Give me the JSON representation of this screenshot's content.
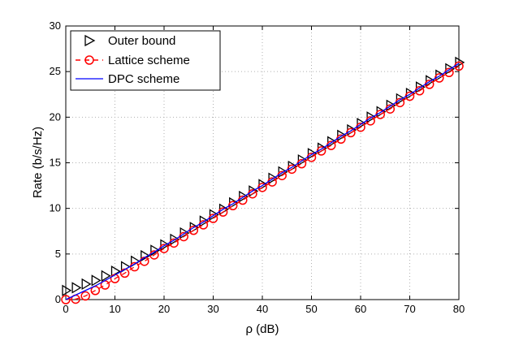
{
  "chart_data": {
    "type": "line",
    "title": "",
    "xlabel": "ρ (dB)",
    "ylabel": "Rate (b/s/Hz)",
    "xlim": [
      0,
      80
    ],
    "ylim": [
      0,
      30
    ],
    "xticks": [
      0,
      10,
      20,
      30,
      40,
      50,
      60,
      70,
      80
    ],
    "yticks": [
      0,
      5,
      10,
      15,
      20,
      25,
      30
    ],
    "grid": true,
    "legend_position": "top-left",
    "colors": {
      "outer_bound": "#000000",
      "lattice": "#ff0000",
      "dpc": "#0000ff",
      "grid": "#b0b0b0",
      "axes": "#000000"
    },
    "series": [
      {
        "name": "Outer bound",
        "style": "markers",
        "marker": "triangle-right",
        "x": [
          0,
          2,
          4,
          6,
          8,
          10,
          12,
          14,
          16,
          18,
          20,
          22,
          24,
          26,
          28,
          30,
          32,
          34,
          36,
          38,
          40,
          42,
          44,
          46,
          48,
          50,
          52,
          54,
          56,
          58,
          60,
          62,
          64,
          66,
          68,
          70,
          72,
          74,
          76,
          78,
          80
        ],
        "y": [
          1.0,
          1.3,
          1.7,
          2.1,
          2.6,
          3.1,
          3.6,
          4.2,
          4.8,
          5.4,
          6.0,
          6.6,
          7.3,
          7.9,
          8.6,
          9.3,
          9.9,
          10.6,
          11.3,
          11.9,
          12.6,
          13.3,
          14.0,
          14.6,
          15.3,
          16.0,
          16.6,
          17.3,
          18.0,
          18.6,
          19.3,
          20.0,
          20.6,
          21.3,
          22.0,
          22.6,
          23.3,
          24.0,
          24.6,
          25.3,
          26.0
        ]
      },
      {
        "name": "Lattice scheme",
        "style": "dashed-markers",
        "marker": "circle",
        "x": [
          0,
          2,
          4,
          6,
          8,
          10,
          12,
          14,
          16,
          18,
          20,
          22,
          24,
          26,
          28,
          30,
          32,
          34,
          36,
          38,
          40,
          42,
          44,
          46,
          48,
          50,
          52,
          54,
          56,
          58,
          60,
          62,
          64,
          66,
          68,
          70,
          72,
          74,
          76,
          78,
          80
        ],
        "y": [
          0.0,
          0.05,
          0.4,
          1.0,
          1.6,
          2.3,
          2.9,
          3.6,
          4.2,
          4.9,
          5.6,
          6.2,
          6.9,
          7.6,
          8.2,
          8.9,
          9.6,
          10.3,
          10.9,
          11.6,
          12.3,
          12.9,
          13.6,
          14.3,
          14.9,
          15.6,
          16.3,
          16.9,
          17.6,
          18.3,
          18.9,
          19.6,
          20.3,
          20.9,
          21.6,
          22.3,
          22.9,
          23.6,
          24.3,
          24.9,
          25.6
        ]
      },
      {
        "name": "DPC scheme",
        "style": "solid-line",
        "marker": "none",
        "x": [
          0,
          2,
          4,
          6,
          8,
          10,
          12,
          14,
          16,
          18,
          20,
          22,
          24,
          26,
          28,
          30,
          32,
          34,
          36,
          38,
          40,
          42,
          44,
          46,
          48,
          50,
          52,
          54,
          56,
          58,
          60,
          62,
          64,
          66,
          68,
          70,
          72,
          74,
          76,
          78,
          80
        ],
        "y": [
          0.0,
          0.5,
          1.0,
          1.5,
          2.1,
          2.7,
          3.3,
          3.9,
          4.6,
          5.2,
          5.9,
          6.5,
          7.2,
          7.9,
          8.5,
          9.2,
          9.9,
          10.5,
          11.2,
          11.9,
          12.5,
          13.2,
          13.9,
          14.5,
          15.2,
          15.9,
          16.5,
          17.2,
          17.9,
          18.5,
          19.2,
          19.9,
          20.5,
          21.2,
          21.9,
          22.5,
          23.2,
          23.9,
          24.5,
          25.2,
          25.9
        ]
      }
    ]
  }
}
